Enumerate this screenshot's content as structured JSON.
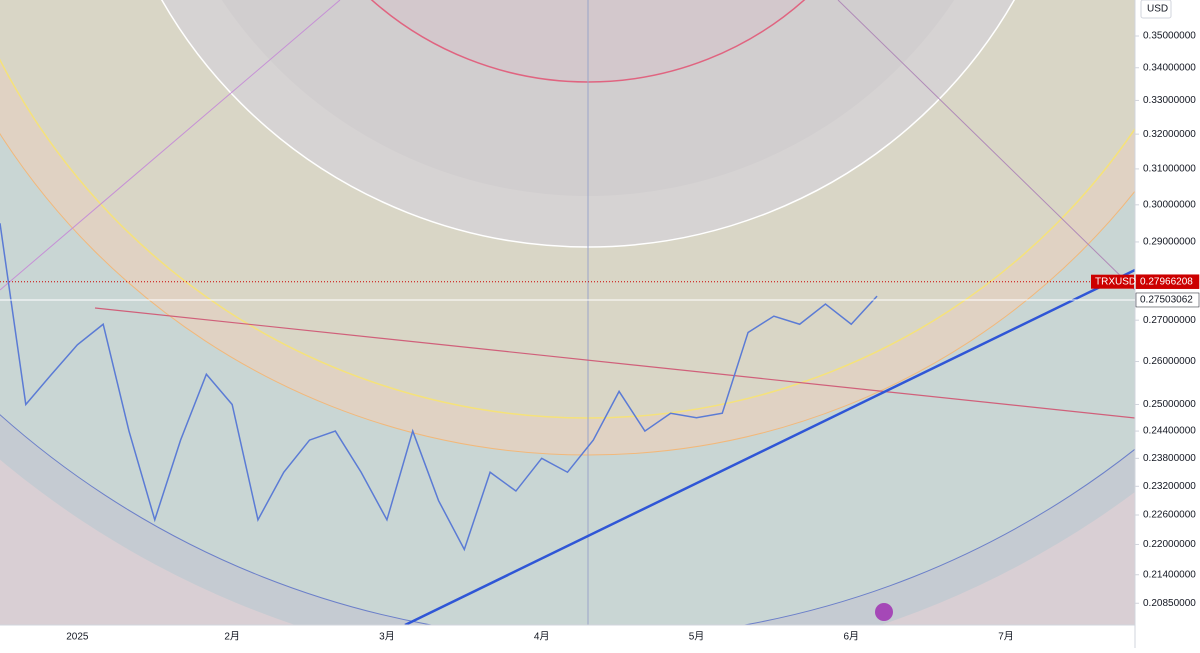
{
  "chart_data": {
    "type": "line",
    "log_scale": true,
    "grid": false,
    "y_axis_label": "USD",
    "categories": [
      null,
      null,
      null,
      "2025",
      null,
      null,
      null,
      null,
      null,
      "2月",
      null,
      null,
      null,
      null,
      null,
      "3月",
      null,
      null,
      null,
      null,
      null,
      "4月",
      null,
      null,
      null,
      null,
      null,
      "5月",
      null,
      null,
      null,
      null,
      null,
      "6月",
      null,
      null,
      null,
      null,
      null,
      "7月",
      null,
      null,
      null,
      null
    ],
    "series": [
      {
        "name": "TRXUSD",
        "color": "#5b7bd5",
        "values": [
          0.295,
          0.25,
          0.257,
          0.264,
          0.269,
          0.244,
          0.225,
          0.242,
          0.257,
          0.25,
          0.225,
          0.235,
          0.242,
          0.244,
          0.235,
          0.225,
          0.244,
          0.229,
          0.219,
          0.235,
          0.231,
          0.238,
          0.235,
          0.242,
          0.253,
          0.244,
          0.248,
          0.247,
          0.248,
          0.267,
          0.271,
          0.269,
          0.274,
          0.269,
          0.276,
          null,
          null,
          null,
          null,
          null,
          null,
          null,
          null,
          null
        ]
      }
    ],
    "ylim": [
      0.2044,
      0.3617
    ],
    "yticks": [
      {
        "value": 0.35,
        "label": "0.35000000"
      },
      {
        "value": 0.34,
        "label": "0.34000000"
      },
      {
        "value": 0.33,
        "label": "0.33000000"
      },
      {
        "value": 0.32,
        "label": "0.32000000"
      },
      {
        "value": 0.31,
        "label": "0.31000000"
      },
      {
        "value": 0.3,
        "label": "0.30000000"
      },
      {
        "value": 0.29,
        "label": "0.29000000"
      },
      {
        "value": 0.27,
        "label": "0.27000000"
      },
      {
        "value": 0.26,
        "label": "0.26000000"
      },
      {
        "value": 0.25,
        "label": "0.25000000"
      },
      {
        "value": 0.244,
        "label": "0.24400000"
      },
      {
        "value": 0.238,
        "label": "0.23800000"
      },
      {
        "value": 0.232,
        "label": "0.23200000"
      },
      {
        "value": 0.226,
        "label": "0.22600000"
      },
      {
        "value": 0.22,
        "label": "0.22000000"
      },
      {
        "value": 0.214,
        "label": "0.21400000"
      },
      {
        "value": 0.2085,
        "label": "0.20850000"
      }
    ],
    "price_lines": [
      {
        "name": "TRXUSD",
        "value": 0.27966208,
        "label": "0.27966208",
        "color": "#cc0000"
      },
      {
        "value": 0.27503062,
        "label": "0.27503062",
        "color": "#ffffff"
      }
    ]
  }
}
